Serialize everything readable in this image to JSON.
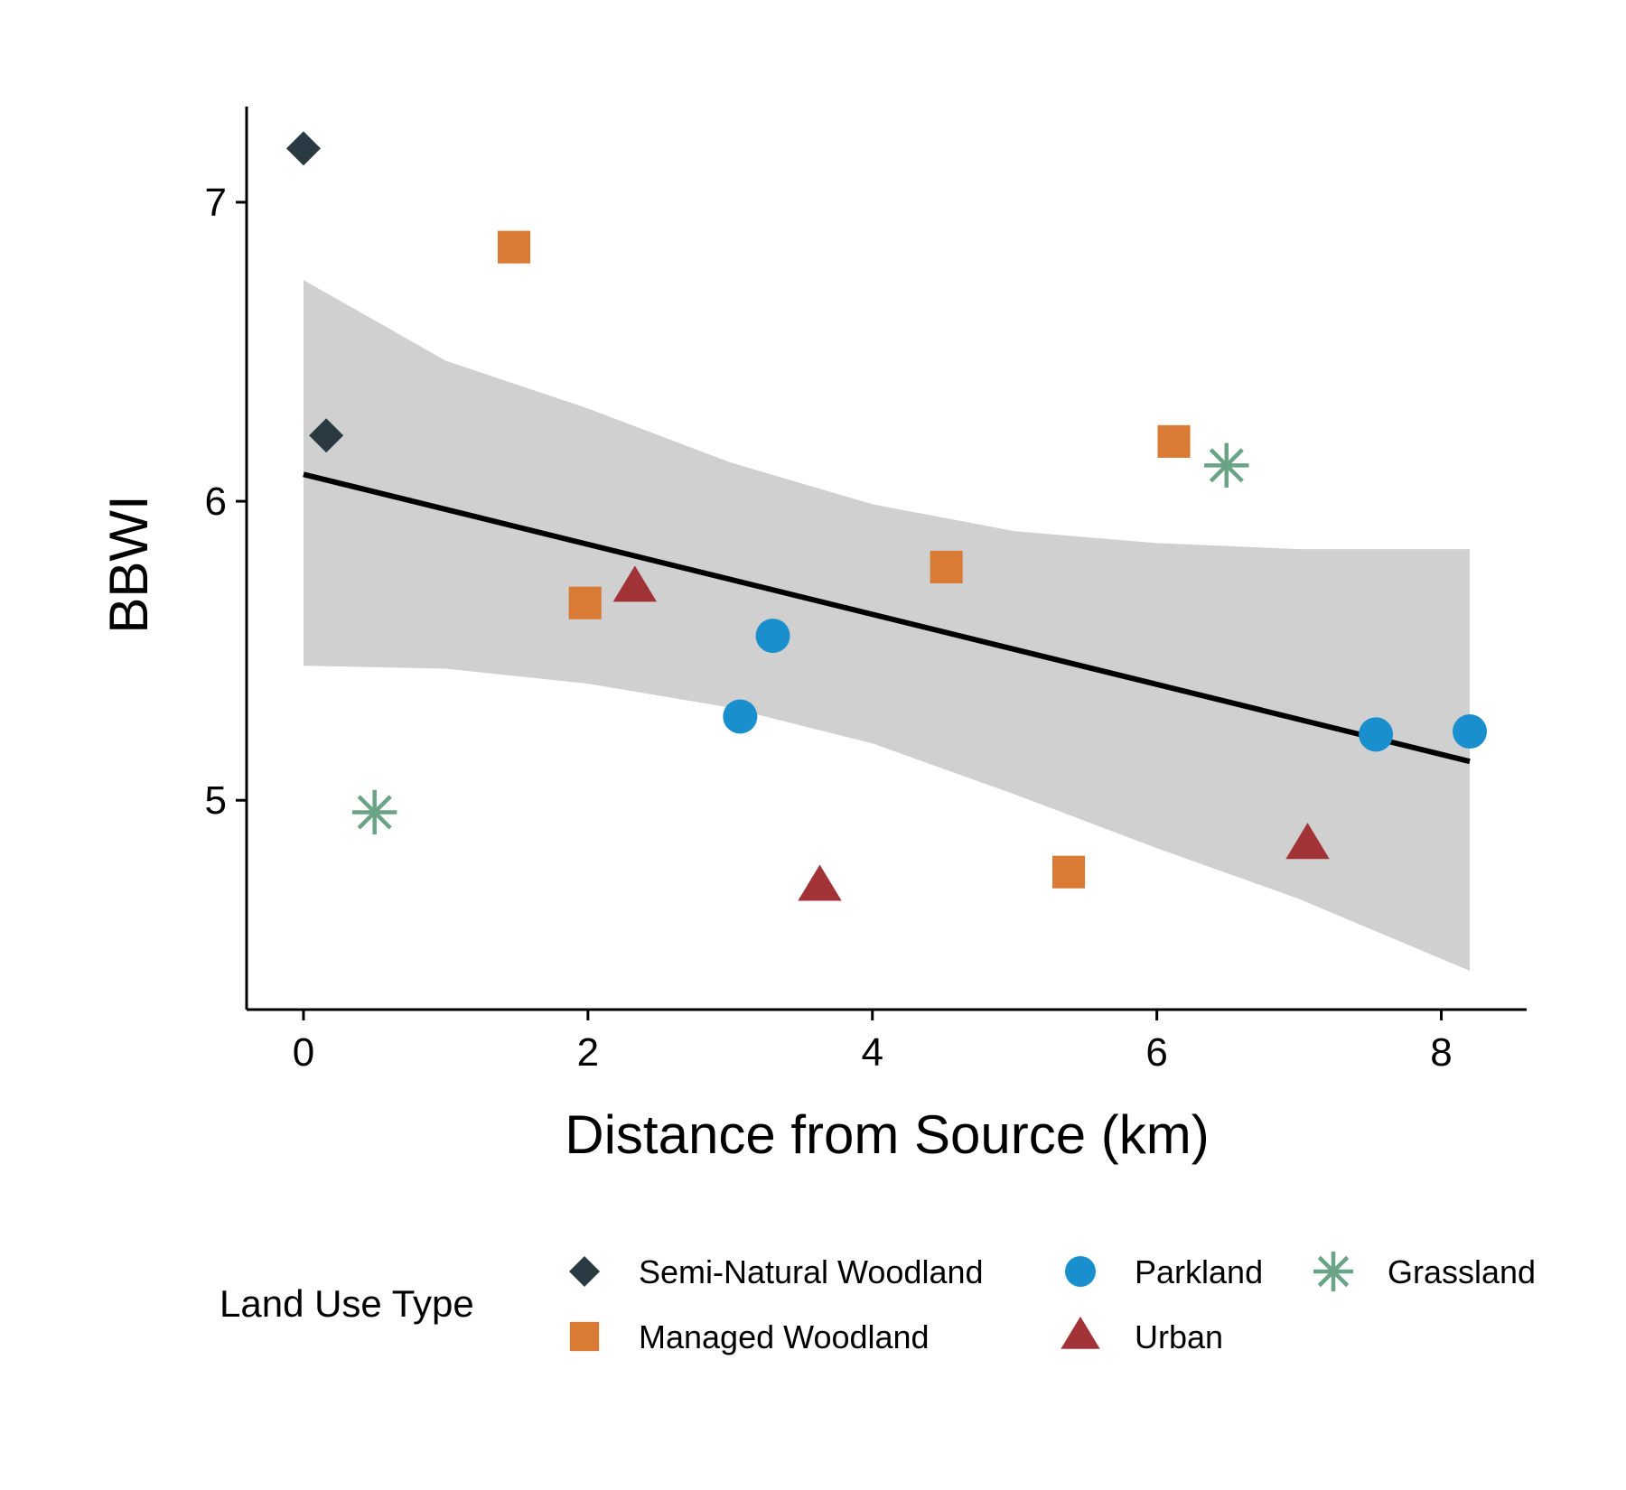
{
  "chart_data": {
    "type": "scatter",
    "xlabel": "Distance from Source (km)",
    "ylabel": "BBWI",
    "xlim": [
      -0.4,
      8.6
    ],
    "ylim": [
      4.3,
      7.32
    ],
    "x_ticks": [
      0,
      2,
      4,
      6,
      8
    ],
    "y_ticks": [
      5,
      6,
      7
    ],
    "grid": false,
    "legend": {
      "title": "Land Use Type",
      "placement": "bottom"
    },
    "series": [
      {
        "name": "Semi-Natural Woodland",
        "marker": "diamond",
        "color": "#2b3a42",
        "points": [
          [
            0.0,
            7.18
          ],
          [
            0.16,
            6.22
          ]
        ]
      },
      {
        "name": "Managed Woodland",
        "marker": "square",
        "color": "#d97b35",
        "points": [
          [
            1.48,
            6.85
          ],
          [
            1.98,
            5.66
          ],
          [
            4.52,
            5.78
          ],
          [
            5.38,
            4.76
          ],
          [
            6.12,
            6.2
          ]
        ]
      },
      {
        "name": "Parkland",
        "marker": "circle",
        "color": "#1a8fce",
        "points": [
          [
            3.07,
            5.28
          ],
          [
            3.3,
            5.55
          ],
          [
            7.54,
            5.22
          ],
          [
            8.2,
            5.23
          ]
        ]
      },
      {
        "name": "Urban",
        "marker": "triangle",
        "color": "#a13236",
        "points": [
          [
            2.33,
            5.71
          ],
          [
            3.63,
            4.71
          ],
          [
            7.06,
            4.85
          ]
        ]
      },
      {
        "name": "Grassland",
        "marker": "asterisk",
        "color": "#6aa386",
        "points": [
          [
            0.5,
            4.96
          ],
          [
            6.49,
            6.12
          ]
        ]
      }
    ],
    "trend_line": {
      "x": [
        0.0,
        8.2
      ],
      "y": [
        6.09,
        5.13
      ],
      "color": "#000000"
    },
    "confidence_band": {
      "x": [
        0.0,
        1.0,
        2.0,
        3.0,
        4.0,
        5.0,
        6.0,
        7.0,
        8.2
      ],
      "lower": [
        5.45,
        5.44,
        5.39,
        5.31,
        5.19,
        5.02,
        4.84,
        4.67,
        4.43
      ],
      "upper": [
        6.74,
        6.47,
        6.31,
        6.13,
        5.99,
        5.9,
        5.86,
        5.84,
        5.84
      ],
      "color": "#d0d0d0"
    }
  }
}
